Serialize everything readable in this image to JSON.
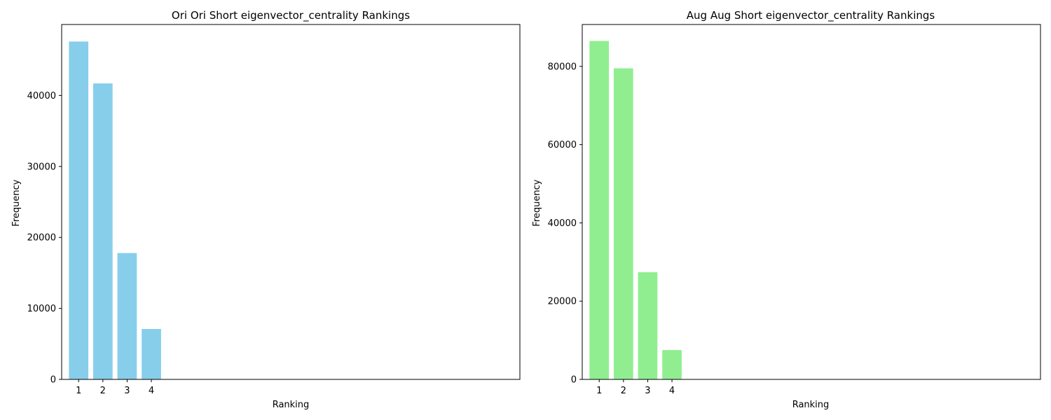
{
  "chart_data": [
    {
      "type": "bar",
      "title": "Ori Ori Short eigenvector_centrality Rankings",
      "xlabel": "Ranking",
      "ylabel": "Frequency",
      "categories": [
        "1",
        "2",
        "3",
        "4"
      ],
      "values": [
        47600,
        41700,
        17800,
        7100
      ],
      "xlim": [
        0.3,
        19.2
      ],
      "ylim": [
        0,
        50000
      ],
      "yticks": [
        0,
        10000,
        20000,
        30000,
        40000
      ],
      "color": "#87ceeb",
      "grid": false
    },
    {
      "type": "bar",
      "title": "Aug Aug Short eigenvector_centrality Rankings",
      "xlabel": "Ranking",
      "ylabel": "Frequency",
      "categories": [
        "1",
        "2",
        "3",
        "4"
      ],
      "values": [
        86500,
        79500,
        27400,
        7500
      ],
      "xlim": [
        0.3,
        19.2
      ],
      "ylim": [
        0,
        90700
      ],
      "yticks": [
        0,
        20000,
        40000,
        60000,
        80000
      ],
      "color": "#90ee90",
      "grid": false
    }
  ]
}
